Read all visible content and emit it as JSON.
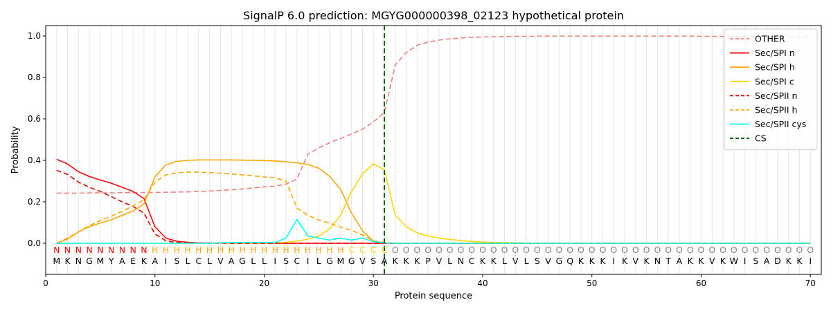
{
  "chart_data": {
    "type": "line",
    "title": "SignalP 6.0 prediction: MGYG000000398_02123 hypothetical protein",
    "xlabel": "Protein sequence",
    "ylabel": "Probability",
    "xlim": [
      0,
      71
    ],
    "ylim": [
      -0.15,
      1.05
    ],
    "xticks": [
      0,
      10,
      20,
      30,
      40,
      50,
      60,
      70
    ],
    "yticks": [
      0.0,
      0.2,
      0.4,
      0.6,
      0.8,
      1.0
    ],
    "grid": "vertical lines at every residue",
    "legend_position": "top-right",
    "cleavage_site": 31,
    "sequence": "MKNGMYAEKAISLCLVAGLLISCILGMGVSAKKKPVLNCKKLVLSVGQKKKIKVKNTAKKVKWISADKKI",
    "labels": "NNNNNNNNNHHHHHHHHHHHHHHHHHHCCCCOOOOOOOOOOOOOOOOOOOOOOOOOOOOOOOOOOOOOOO",
    "label_colors": {
      "N": "#ff0000",
      "H": "#ffa500",
      "C": "#ffd700",
      "O": "#808080"
    },
    "series": [
      {
        "name": "OTHER",
        "color": "#f08080",
        "dash": "dashed",
        "values": [
          0.242,
          0.242,
          0.242,
          0.243,
          0.243,
          0.243,
          0.244,
          0.244,
          0.245,
          0.245,
          0.246,
          0.247,
          0.248,
          0.25,
          0.252,
          0.255,
          0.258,
          0.262,
          0.267,
          0.272,
          0.276,
          0.285,
          0.31,
          0.43,
          0.46,
          0.485,
          0.505,
          0.528,
          0.55,
          0.585,
          0.63,
          0.86,
          0.92,
          0.955,
          0.97,
          0.98,
          0.986,
          0.99,
          0.993,
          0.995,
          0.996,
          0.997,
          0.998,
          0.998,
          0.999,
          0.999,
          0.999,
          0.999,
          0.999,
          0.999,
          0.999,
          0.999,
          0.999,
          0.999,
          0.999,
          0.999,
          0.999,
          0.999,
          0.999,
          0.998,
          0.998,
          0.997,
          0.997,
          0.997,
          0.997,
          0.997,
          0.997,
          0.997,
          0.997,
          0.997
        ]
      },
      {
        "name": "Sec/SPI n",
        "color": "#ff0000",
        "dash": "solid",
        "values": [
          0.405,
          0.383,
          0.345,
          0.322,
          0.305,
          0.29,
          0.27,
          0.25,
          0.215,
          0.08,
          0.025,
          0.01,
          0.005,
          0.002,
          0.001,
          0.001,
          0,
          0,
          0,
          0,
          0,
          0,
          0,
          0,
          0,
          0,
          0,
          0,
          0,
          0,
          0,
          0,
          0,
          0,
          0,
          0,
          0,
          0,
          0,
          0,
          0,
          0,
          0,
          0,
          0,
          0,
          0,
          0,
          0,
          0,
          0,
          0,
          0,
          0,
          0,
          0,
          0,
          0,
          0,
          0,
          0,
          0,
          0,
          0,
          0,
          0,
          0,
          0,
          0,
          0
        ]
      },
      {
        "name": "Sec/SPI h",
        "color": "#ffa500",
        "dash": "solid",
        "values": [
          0,
          0.02,
          0.055,
          0.08,
          0.098,
          0.113,
          0.135,
          0.155,
          0.19,
          0.32,
          0.378,
          0.395,
          0.4,
          0.402,
          0.402,
          0.402,
          0.402,
          0.401,
          0.4,
          0.399,
          0.397,
          0.393,
          0.388,
          0.38,
          0.362,
          0.323,
          0.26,
          0.145,
          0.06,
          0.01,
          0.002,
          0,
          0,
          0,
          0,
          0,
          0,
          0,
          0,
          0,
          0,
          0,
          0,
          0,
          0,
          0,
          0,
          0,
          0,
          0,
          0,
          0,
          0,
          0,
          0,
          0,
          0,
          0,
          0,
          0,
          0,
          0,
          0,
          0,
          0,
          0,
          0,
          0,
          0,
          0
        ]
      },
      {
        "name": "Sec/SPI c",
        "color": "#ffd700",
        "dash": "solid",
        "values": [
          0,
          0,
          0,
          0,
          0,
          0,
          0,
          0,
          0,
          0,
          0,
          0,
          0,
          0,
          0,
          0,
          0,
          0,
          0,
          0,
          0.002,
          0.005,
          0.01,
          0.02,
          0.035,
          0.07,
          0.135,
          0.25,
          0.335,
          0.383,
          0.355,
          0.135,
          0.08,
          0.05,
          0.035,
          0.025,
          0.018,
          0.013,
          0.009,
          0.006,
          0.004,
          0.003,
          0.002,
          0.001,
          0.001,
          0,
          0,
          0,
          0,
          0,
          0,
          0,
          0,
          0,
          0,
          0,
          0,
          0,
          0,
          0,
          0,
          0,
          0,
          0,
          0,
          0,
          0,
          0,
          0,
          0
        ]
      },
      {
        "name": "Sec/SPII n",
        "color": "#e00000",
        "dash": "dashed",
        "values": [
          0.352,
          0.332,
          0.295,
          0.27,
          0.25,
          0.225,
          0.2,
          0.178,
          0.145,
          0.045,
          0.012,
          0.004,
          0.002,
          0.001,
          0,
          0,
          0,
          0,
          0,
          0,
          0,
          0,
          0,
          0,
          0,
          0,
          0,
          0,
          0,
          0,
          0,
          0,
          0,
          0,
          0,
          0,
          0,
          0,
          0,
          0,
          0,
          0,
          0,
          0,
          0,
          0,
          0,
          0,
          0,
          0,
          0,
          0,
          0,
          0,
          0,
          0,
          0,
          0,
          0,
          0,
          0,
          0,
          0,
          0,
          0,
          0,
          0,
          0,
          0,
          0
        ]
      },
      {
        "name": "Sec/SPII h",
        "color": "#ffa500",
        "dash": "dashed",
        "values": [
          0,
          0.025,
          0.055,
          0.085,
          0.11,
          0.13,
          0.155,
          0.18,
          0.21,
          0.295,
          0.33,
          0.34,
          0.343,
          0.343,
          0.341,
          0.338,
          0.334,
          0.33,
          0.325,
          0.32,
          0.315,
          0.3,
          0.17,
          0.135,
          0.112,
          0.097,
          0.078,
          0.062,
          0.04,
          0.012,
          0.004,
          0.001,
          0,
          0,
          0,
          0,
          0,
          0,
          0,
          0,
          0,
          0,
          0,
          0,
          0,
          0,
          0,
          0,
          0,
          0,
          0,
          0,
          0,
          0,
          0,
          0,
          0,
          0,
          0,
          0,
          0,
          0,
          0,
          0,
          0,
          0,
          0,
          0,
          0,
          0
        ]
      },
      {
        "name": "Sec/SPII cys",
        "color": "#00ffff",
        "dash": "solid",
        "values": [
          0,
          0,
          0,
          0,
          0,
          0,
          0,
          0,
          0,
          0,
          0,
          0,
          0,
          0,
          0,
          0.002,
          0.003,
          0.004,
          0.004,
          0.004,
          0.004,
          0.025,
          0.115,
          0.035,
          0.025,
          0.015,
          0.025,
          0.015,
          0.025,
          0.008,
          0.002,
          0,
          0,
          0,
          0,
          0,
          0,
          0,
          0,
          0,
          0,
          0,
          0,
          0,
          0,
          0,
          0,
          0,
          0,
          0,
          0,
          0,
          0,
          0,
          0,
          0,
          0,
          0,
          0,
          0,
          0,
          0,
          0,
          0,
          0,
          0,
          0,
          0,
          0,
          0
        ]
      },
      {
        "name": "CS",
        "color": "#006400",
        "dash": "dashed",
        "vertical_at": 31
      }
    ]
  }
}
